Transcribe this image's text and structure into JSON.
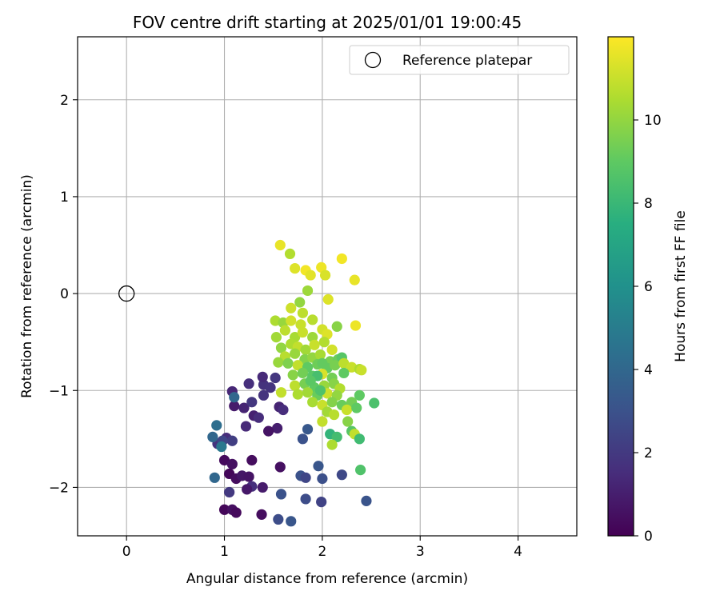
{
  "chart_data": {
    "type": "scatter",
    "title": "FOV centre drift starting at 2025/01/01 19:00:45",
    "xlabel": "Angular distance from reference (arcmin)",
    "ylabel": "Rotation from reference (arcmin)",
    "xlim": [
      -0.5,
      4.6
    ],
    "ylim": [
      -2.5,
      2.65
    ],
    "xticks": [
      0,
      1,
      2,
      3,
      4
    ],
    "yticks": [
      -2,
      -1,
      0,
      1,
      2
    ],
    "grid": true,
    "legend": {
      "label": "Reference platepar",
      "placement": "top-right"
    },
    "reference_point": {
      "x": 0,
      "y": 0
    },
    "colorbar": {
      "label": "Hours from first FF file",
      "range": [
        0,
        12
      ],
      "ticks": [
        0,
        2,
        4,
        6,
        8,
        10
      ],
      "colormap": "viridis"
    },
    "series": [
      {
        "points": [
          {
            "x": 1.08,
            "y": -1.01,
            "c": 1.3
          },
          {
            "x": 1.1,
            "y": -1.16,
            "c": 0.9
          },
          {
            "x": 1.2,
            "y": -1.18,
            "c": 1.2
          },
          {
            "x": 1.28,
            "y": -1.12,
            "c": 1.9
          },
          {
            "x": 1.3,
            "y": -1.26,
            "c": 1.1
          },
          {
            "x": 1.25,
            "y": -0.93,
            "c": 1.6
          },
          {
            "x": 1.22,
            "y": -1.37,
            "c": 1.4
          },
          {
            "x": 1.35,
            "y": -1.28,
            "c": 1.5
          },
          {
            "x": 1.4,
            "y": -0.94,
            "c": 1.7
          },
          {
            "x": 1.47,
            "y": -0.97,
            "c": 1.8
          },
          {
            "x": 1.52,
            "y": -0.87,
            "c": 1.9
          },
          {
            "x": 1.56,
            "y": -1.17,
            "c": 1.2
          },
          {
            "x": 1.6,
            "y": -1.2,
            "c": 1.5
          },
          {
            "x": 1.54,
            "y": -1.39,
            "c": 1.0
          },
          {
            "x": 1.45,
            "y": -1.42,
            "c": 0.6
          },
          {
            "x": 1.39,
            "y": -0.86,
            "c": 1.4
          },
          {
            "x": 1.4,
            "y": -1.05,
            "c": 1.8
          },
          {
            "x": 1.02,
            "y": -1.49,
            "c": 1.5
          },
          {
            "x": 1.08,
            "y": -1.52,
            "c": 2.2
          },
          {
            "x": 0.93,
            "y": -1.55,
            "c": 1.8
          },
          {
            "x": 0.98,
            "y": -1.52,
            "c": 2.5
          },
          {
            "x": 1.0,
            "y": -1.72,
            "c": 0.3
          },
          {
            "x": 1.08,
            "y": -1.76,
            "c": 0.5
          },
          {
            "x": 1.05,
            "y": -1.86,
            "c": 0.2
          },
          {
            "x": 1.12,
            "y": -1.91,
            "c": 0.4
          },
          {
            "x": 1.18,
            "y": -1.88,
            "c": 0.7
          },
          {
            "x": 1.25,
            "y": -1.89,
            "c": 0.6
          },
          {
            "x": 1.28,
            "y": -1.99,
            "c": 1.6
          },
          {
            "x": 1.23,
            "y": -2.02,
            "c": 0.8
          },
          {
            "x": 1.05,
            "y": -2.05,
            "c": 2.0
          },
          {
            "x": 1.28,
            "y": -1.72,
            "c": 0.4
          },
          {
            "x": 1.0,
            "y": -2.23,
            "c": 0.2
          },
          {
            "x": 1.08,
            "y": -2.23,
            "c": 0.5
          },
          {
            "x": 1.12,
            "y": -2.26,
            "c": 0.3
          },
          {
            "x": 1.38,
            "y": -2.28,
            "c": 0.4
          },
          {
            "x": 1.39,
            "y": -2.0,
            "c": 0.9
          },
          {
            "x": 1.57,
            "y": -1.79,
            "c": 0.5
          },
          {
            "x": 1.58,
            "y": -2.07,
            "c": 3.0
          },
          {
            "x": 1.55,
            "y": -2.33,
            "c": 2.8
          },
          {
            "x": 1.68,
            "y": -2.35,
            "c": 3.2
          },
          {
            "x": 1.78,
            "y": -1.88,
            "c": 3.0
          },
          {
            "x": 1.83,
            "y": -1.9,
            "c": 2.5
          },
          {
            "x": 1.83,
            "y": -2.12,
            "c": 2.8
          },
          {
            "x": 1.96,
            "y": -1.78,
            "c": 3.2
          },
          {
            "x": 2.0,
            "y": -1.91,
            "c": 2.9
          },
          {
            "x": 1.99,
            "y": -2.15,
            "c": 2.4
          },
          {
            "x": 2.2,
            "y": -1.87,
            "c": 2.6
          },
          {
            "x": 2.45,
            "y": -2.14,
            "c": 3.1
          },
          {
            "x": 1.8,
            "y": -1.5,
            "c": 3.0
          },
          {
            "x": 1.85,
            "y": -1.4,
            "c": 3.3
          },
          {
            "x": 0.88,
            "y": -1.48,
            "c": 4.0
          },
          {
            "x": 0.92,
            "y": -1.36,
            "c": 4.3
          },
          {
            "x": 1.1,
            "y": -1.07,
            "c": 4.0
          },
          {
            "x": 0.9,
            "y": -1.9,
            "c": 4.0
          },
          {
            "x": 0.97,
            "y": -1.58,
            "c": 4.8
          },
          {
            "x": 1.57,
            "y": 0.5,
            "c": 11.6
          },
          {
            "x": 1.67,
            "y": 0.41,
            "c": 10.6
          },
          {
            "x": 1.72,
            "y": 0.26,
            "c": 11.4
          },
          {
            "x": 1.83,
            "y": 0.24,
            "c": 11.8
          },
          {
            "x": 1.88,
            "y": 0.19,
            "c": 11.5
          },
          {
            "x": 1.99,
            "y": 0.27,
            "c": 11.7
          },
          {
            "x": 2.03,
            "y": 0.19,
            "c": 11.3
          },
          {
            "x": 2.2,
            "y": 0.36,
            "c": 11.8
          },
          {
            "x": 2.33,
            "y": 0.14,
            "c": 11.6
          },
          {
            "x": 1.85,
            "y": 0.03,
            "c": 10.2
          },
          {
            "x": 1.77,
            "y": -0.09,
            "c": 10.0
          },
          {
            "x": 2.06,
            "y": -0.06,
            "c": 11.4
          },
          {
            "x": 1.68,
            "y": -0.15,
            "c": 11.1
          },
          {
            "x": 1.8,
            "y": -0.2,
            "c": 10.8
          },
          {
            "x": 2.34,
            "y": -0.33,
            "c": 11.7
          },
          {
            "x": 1.52,
            "y": -0.28,
            "c": 10.5
          },
          {
            "x": 1.6,
            "y": -0.3,
            "c": 10.1
          },
          {
            "x": 1.68,
            "y": -0.28,
            "c": 11.2
          },
          {
            "x": 1.78,
            "y": -0.32,
            "c": 11.0
          },
          {
            "x": 1.9,
            "y": -0.27,
            "c": 10.7
          },
          {
            "x": 2.15,
            "y": -0.34,
            "c": 9.8
          },
          {
            "x": 1.53,
            "y": -0.45,
            "c": 10.3
          },
          {
            "x": 1.62,
            "y": -0.38,
            "c": 10.8
          },
          {
            "x": 1.72,
            "y": -0.45,
            "c": 10.4
          },
          {
            "x": 1.8,
            "y": -0.4,
            "c": 11.0
          },
          {
            "x": 1.9,
            "y": -0.45,
            "c": 10.2
          },
          {
            "x": 2.0,
            "y": -0.37,
            "c": 11.2
          },
          {
            "x": 2.05,
            "y": -0.42,
            "c": 11.4
          },
          {
            "x": 1.58,
            "y": -0.56,
            "c": 10.0
          },
          {
            "x": 1.68,
            "y": -0.52,
            "c": 10.5
          },
          {
            "x": 1.75,
            "y": -0.55,
            "c": 10.9
          },
          {
            "x": 1.83,
            "y": -0.58,
            "c": 10.3
          },
          {
            "x": 1.92,
            "y": -0.53,
            "c": 11.0
          },
          {
            "x": 2.02,
            "y": -0.5,
            "c": 10.6
          },
          {
            "x": 2.1,
            "y": -0.58,
            "c": 11.2
          },
          {
            "x": 1.62,
            "y": -0.65,
            "c": 10.7
          },
          {
            "x": 1.72,
            "y": -0.62,
            "c": 10.1
          },
          {
            "x": 1.82,
            "y": -0.68,
            "c": 9.7
          },
          {
            "x": 1.9,
            "y": -0.66,
            "c": 10.0
          },
          {
            "x": 1.98,
            "y": -0.63,
            "c": 10.4
          },
          {
            "x": 2.08,
            "y": -0.7,
            "c": 9.5
          },
          {
            "x": 2.16,
            "y": -0.68,
            "c": 9.2
          },
          {
            "x": 2.2,
            "y": -0.66,
            "c": 8.8
          },
          {
            "x": 1.55,
            "y": -0.71,
            "c": 10.1
          },
          {
            "x": 1.65,
            "y": -0.72,
            "c": 9.6
          },
          {
            "x": 1.75,
            "y": -0.74,
            "c": 10.9
          },
          {
            "x": 1.85,
            "y": -0.76,
            "c": 9.0
          },
          {
            "x": 1.95,
            "y": -0.73,
            "c": 9.3
          },
          {
            "x": 2.05,
            "y": -0.77,
            "c": 9.1
          },
          {
            "x": 2.13,
            "y": -0.74,
            "c": 9.5
          },
          {
            "x": 2.22,
            "y": -0.72,
            "c": 10.8
          },
          {
            "x": 2.3,
            "y": -0.76,
            "c": 11.0
          },
          {
            "x": 2.38,
            "y": -0.78,
            "c": 10.5
          },
          {
            "x": 2.4,
            "y": -0.79,
            "c": 11.0
          },
          {
            "x": 1.7,
            "y": -0.84,
            "c": 9.8
          },
          {
            "x": 1.8,
            "y": -0.82,
            "c": 9.4
          },
          {
            "x": 1.9,
            "y": -0.85,
            "c": 8.9
          },
          {
            "x": 2.0,
            "y": -0.83,
            "c": 11.3
          },
          {
            "x": 2.1,
            "y": -0.87,
            "c": 9.4
          },
          {
            "x": 2.22,
            "y": -0.82,
            "c": 9.0
          },
          {
            "x": 1.72,
            "y": -0.95,
            "c": 10.8
          },
          {
            "x": 1.82,
            "y": -0.93,
            "c": 9.5
          },
          {
            "x": 1.92,
            "y": -0.97,
            "c": 9.0
          },
          {
            "x": 2.02,
            "y": -0.95,
            "c": 10.1
          },
          {
            "x": 2.12,
            "y": -0.93,
            "c": 9.8
          },
          {
            "x": 2.18,
            "y": -0.98,
            "c": 10.6
          },
          {
            "x": 1.58,
            "y": -1.02,
            "c": 10.9
          },
          {
            "x": 1.75,
            "y": -1.04,
            "c": 10.5
          },
          {
            "x": 1.85,
            "y": -1.02,
            "c": 10.3
          },
          {
            "x": 1.95,
            "y": -1.05,
            "c": 9.2
          },
          {
            "x": 2.05,
            "y": -1.03,
            "c": 11.1
          },
          {
            "x": 2.15,
            "y": -1.05,
            "c": 10.0
          },
          {
            "x": 2.38,
            "y": -1.05,
            "c": 9.0
          },
          {
            "x": 1.9,
            "y": -1.12,
            "c": 10.4
          },
          {
            "x": 2.0,
            "y": -1.15,
            "c": 11.0
          },
          {
            "x": 2.1,
            "y": -1.12,
            "c": 9.7
          },
          {
            "x": 2.2,
            "y": -1.15,
            "c": 9.2
          },
          {
            "x": 2.3,
            "y": -1.12,
            "c": 9.4
          },
          {
            "x": 2.53,
            "y": -1.13,
            "c": 8.5
          },
          {
            "x": 2.05,
            "y": -1.22,
            "c": 10.3
          },
          {
            "x": 2.12,
            "y": -1.25,
            "c": 10.7
          },
          {
            "x": 2.25,
            "y": -1.2,
            "c": 11.0
          },
          {
            "x": 2.35,
            "y": -1.18,
            "c": 9.0
          },
          {
            "x": 2.0,
            "y": -1.32,
            "c": 10.9
          },
          {
            "x": 2.26,
            "y": -1.32,
            "c": 9.8
          },
          {
            "x": 2.3,
            "y": -1.42,
            "c": 8.8
          },
          {
            "x": 2.33,
            "y": -1.45,
            "c": 10.9
          },
          {
            "x": 2.38,
            "y": -1.5,
            "c": 8.2
          },
          {
            "x": 2.08,
            "y": -1.45,
            "c": 7.8
          },
          {
            "x": 2.15,
            "y": -1.48,
            "c": 8.3
          },
          {
            "x": 2.1,
            "y": -1.56,
            "c": 10.5
          },
          {
            "x": 2.39,
            "y": -1.82,
            "c": 8.6
          },
          {
            "x": 1.95,
            "y": -0.85,
            "c": 8.4
          },
          {
            "x": 1.88,
            "y": -0.9,
            "c": 8.9
          },
          {
            "x": 2.0,
            "y": -0.72,
            "c": 9.1
          },
          {
            "x": 1.98,
            "y": -1.0,
            "c": 8.6
          }
        ]
      }
    ]
  }
}
